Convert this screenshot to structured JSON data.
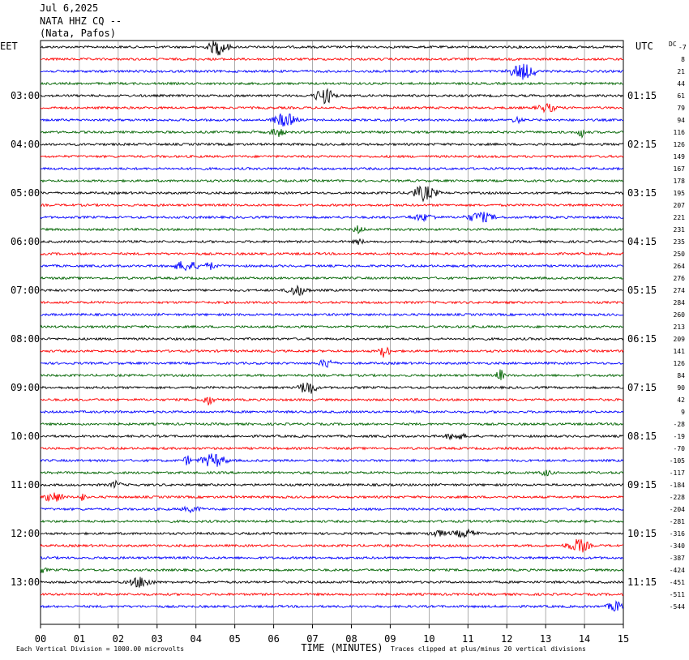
{
  "header": {
    "date": "Jul 6,2025",
    "station": "NATA HHZ CQ --",
    "location": "(Nata, Pafos)"
  },
  "chart_data": {
    "type": "line",
    "left_tz": "EET",
    "right_tz": "UTC",
    "dc_label": "DC",
    "top_offset": "-7",
    "xlabel": "TIME (MINUTES)",
    "x_ticks": [
      "00",
      "01",
      "02",
      "03",
      "04",
      "05",
      "06",
      "07",
      "08",
      "09",
      "10",
      "11",
      "12",
      "13",
      "14",
      "15"
    ],
    "xlim": [
      0,
      15
    ],
    "left_hour_labels": [
      "03:00",
      "04:00",
      "05:00",
      "06:00",
      "07:00",
      "08:00",
      "09:00",
      "10:00",
      "11:00",
      "12:00",
      "13:00"
    ],
    "right_hour_labels": [
      "01:15",
      "02:15",
      "03:15",
      "04:15",
      "05:15",
      "06:15",
      "07:15",
      "08:15",
      "09:15",
      "10:15",
      "11:15"
    ],
    "dc_offsets": [
      "8",
      "21",
      "44",
      "61",
      "79",
      "94",
      "116",
      "126",
      "149",
      "167",
      "178",
      "195",
      "207",
      "221",
      "231",
      "235",
      "250",
      "264",
      "276",
      "274",
      "284",
      "260",
      "213",
      "209",
      "141",
      "126",
      "84",
      "90",
      "42",
      "9",
      "-28",
      "-19",
      "-70",
      "-105",
      "-117",
      "-184",
      "-228",
      "-204",
      "-281",
      "-316",
      "-340",
      "-387",
      "-424",
      "-451",
      "-511",
      "-544"
    ],
    "trace_colors": [
      "#000000",
      "#ff0000",
      "#0000ff",
      "#006400"
    ],
    "trace_count": 47,
    "footer_left": "Each Vertical Division = 1000.00 microvolts",
    "footer_right": "Traces clipped at plus/minus 20 vertical divisions"
  }
}
